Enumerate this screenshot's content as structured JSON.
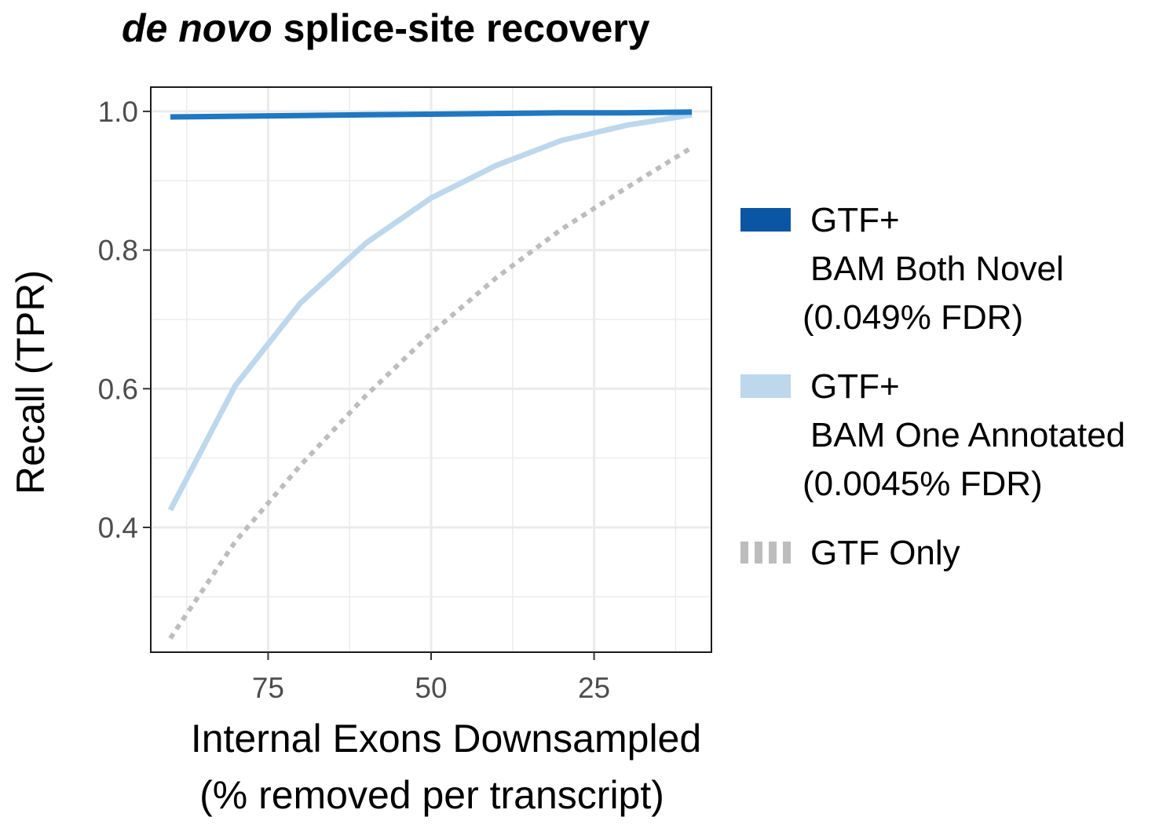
{
  "chart_data": {
    "type": "line",
    "title_italic": "de novo",
    "title_rest": " splice-site recovery",
    "xlabel_line1": "Internal Exons Downsampled",
    "xlabel_line2": "(% removed per transcript)",
    "ylabel": "Recall (TPR)",
    "x_reversed": true,
    "xlim": [
      93,
      7
    ],
    "ylim": [
      0.22,
      1.035
    ],
    "x_ticks": [
      75,
      50,
      25
    ],
    "x_tick_labels": [
      "75",
      "50",
      "25"
    ],
    "y_ticks": [
      0.4,
      0.6,
      0.8,
      1.0
    ],
    "y_tick_labels": [
      "0.4",
      "0.6",
      "0.8",
      "1.0"
    ],
    "grid": true,
    "legend_position": "right",
    "x": [
      90,
      80,
      70,
      60,
      50,
      40,
      30,
      20,
      10
    ],
    "series": [
      {
        "legend_lines": [
          "GTF+",
          "BAM Both Novel",
          "(0.049% FDR)"
        ],
        "color": "#1f78c1",
        "legend_color": "#0b56a4",
        "dash": "solid",
        "values": [
          0.992,
          0.993,
          0.994,
          0.995,
          0.996,
          0.997,
          0.998,
          0.998,
          0.999
        ]
      },
      {
        "legend_lines": [
          "GTF+",
          "BAM One Annotated",
          "(0.0045% FDR)"
        ],
        "color": "#bdd7ec",
        "legend_color": "#bdd7ec",
        "dash": "solid",
        "values": [
          0.425,
          0.605,
          0.724,
          0.81,
          0.875,
          0.922,
          0.958,
          0.98,
          0.995
        ]
      },
      {
        "legend_lines": [
          "GTF Only"
        ],
        "color": "#bdbdbd",
        "legend_color": "#bdbdbd",
        "dash": "dotted",
        "values": [
          0.24,
          0.38,
          0.49,
          0.59,
          0.68,
          0.76,
          0.83,
          0.89,
          0.948
        ]
      }
    ]
  }
}
